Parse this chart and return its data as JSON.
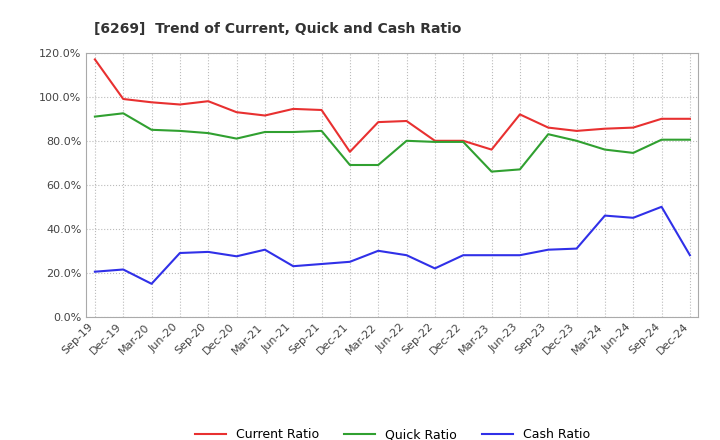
{
  "title": "[6269]  Trend of Current, Quick and Cash Ratio",
  "labels": [
    "Sep-19",
    "Dec-19",
    "Mar-20",
    "Jun-20",
    "Sep-20",
    "Dec-20",
    "Mar-21",
    "Jun-21",
    "Sep-21",
    "Dec-21",
    "Mar-22",
    "Jun-22",
    "Sep-22",
    "Dec-22",
    "Mar-23",
    "Jun-23",
    "Sep-23",
    "Dec-23",
    "Mar-24",
    "Jun-24",
    "Sep-24",
    "Dec-24"
  ],
  "current_ratio": [
    117.0,
    99.0,
    97.5,
    96.5,
    98.0,
    93.0,
    91.5,
    94.5,
    94.0,
    75.0,
    88.5,
    89.0,
    80.0,
    80.0,
    76.0,
    92.0,
    86.0,
    84.5,
    85.5,
    86.0,
    90.0,
    90.0
  ],
  "quick_ratio": [
    91.0,
    92.5,
    85.0,
    84.5,
    83.5,
    81.0,
    84.0,
    84.0,
    84.5,
    69.0,
    69.0,
    80.0,
    79.5,
    79.5,
    66.0,
    67.0,
    83.0,
    80.0,
    76.0,
    74.5,
    80.5,
    80.5
  ],
  "cash_ratio": [
    20.5,
    21.5,
    15.0,
    29.0,
    29.5,
    27.5,
    30.5,
    23.0,
    24.0,
    25.0,
    30.0,
    28.0,
    22.0,
    28.0,
    28.0,
    28.0,
    30.5,
    31.0,
    46.0,
    45.0,
    50.0,
    28.0
  ],
  "current_color": "#e83030",
  "quick_color": "#30a030",
  "cash_color": "#3030e8",
  "ylim": [
    0,
    120
  ],
  "yticks": [
    0,
    20,
    40,
    60,
    80,
    100,
    120
  ],
  "background_color": "#ffffff",
  "grid_color": "#bbbbbb"
}
